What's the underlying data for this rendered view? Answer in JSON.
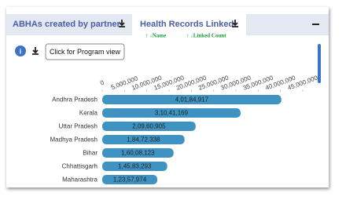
{
  "tabs": [
    "ABHAs created by partner",
    "Health Records Linked"
  ],
  "sort": [
    "↑ ↓Name",
    "↑ ↓Linked Count"
  ],
  "button": "Click for Program view",
  "chart_data": {
    "type": "bar",
    "orientation": "horizontal",
    "categories": [
      "Andhra Pradesh",
      "Kerala",
      "Uttar Pradesh",
      "Madhya Pradesh",
      "Bihar",
      "Chhattisgarh",
      "Maharashtra"
    ],
    "values": [
      40184917,
      31041169,
      20960905,
      18472338,
      16008123,
      14583293,
      12357974
    ],
    "value_labels": [
      "4,01,84,917",
      "3,10,41,169",
      "2,09,60,905",
      "1,84,72,338",
      "1,60,08,123",
      "1,45,83,293",
      "1,23,57,974"
    ],
    "color": "#3f93c2",
    "xlim": [
      0,
      45000000
    ],
    "xticks": [
      0,
      {
        "value": 5000000,
        "label": "5,000,000"
      },
      {
        "value": 10000000,
        "label": "10,000,000"
      },
      {
        "value": 15000000,
        "label": "15,000,000"
      },
      {
        "value": 20000000,
        "label": "20,000,000"
      },
      {
        "value": 25000000,
        "label": "25,000,000"
      },
      {
        "value": 30000000,
        "label": "30,000,000"
      },
      {
        "value": 35000000,
        "label": "35,000,000"
      },
      {
        "value": 40000000,
        "label": "40,000,000"
      },
      {
        "value": 45000000,
        "label": "45,000,000"
      }
    ],
    "grid": false
  }
}
